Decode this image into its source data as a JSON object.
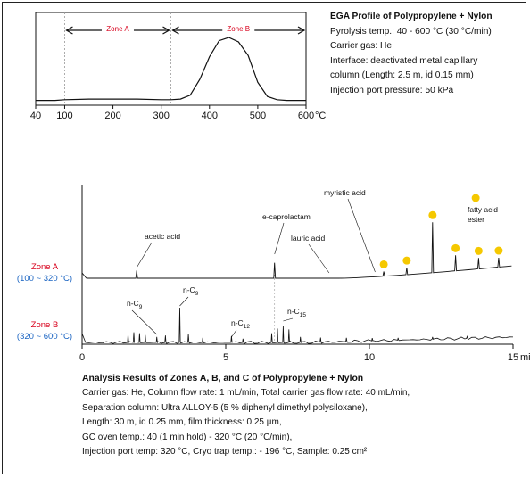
{
  "ega_info": {
    "title": "EGA Profile of Polypropylene + Nylon",
    "lines": [
      "Pyrolysis temp.: 40 - 600 °C (30 °C/min)",
      "Carrier gas: He",
      "Interface: deactivated metal capillary",
      "column (Length: 2.5 m, id 0.15 mm)",
      "Injection port pressure: 50 kPa"
    ]
  },
  "gc_info": {
    "title": "Analysis Results of Zones A, B, and C of Polypropylene + Nylon",
    "lines": [
      "Carrier gas: He, Column flow rate: 1 mL/min, Total carrier gas flow rate: 40 mL/min,",
      "Separation column: Ultra ALLOY-5 (5 % diphenyl dimethyl polysiloxane),",
      "Length: 30 m, id 0.25 mm, film thickness: 0.25 µm,",
      "GC oven temp.: 40 (1 min hold) - 320 °C (20 °C/min),",
      "Injection port temp: 320 °C, Cryo trap temp.: - 196 °C, Sample: 0.25 cm²"
    ]
  },
  "chrom_labels": {
    "zone_a": "Zone A",
    "zone_a_range": "(100 ~ 320 °C)",
    "zone_b": "Zone B",
    "zone_b_range": "(320 ~ 600 °C)"
  },
  "colors": {
    "zone_red": "#d8001c",
    "range_blue": "#1a64c2",
    "marker_yellow": "#f5c800",
    "line": "#111111"
  },
  "chart_data": [
    {
      "type": "line",
      "unit_label": "°C",
      "xlim": [
        40,
        600
      ],
      "x_ticks": [
        40,
        100,
        200,
        300,
        400,
        500,
        600
      ],
      "x_tick_labels": [
        "40",
        "100",
        "200",
        "300",
        "400",
        "500",
        "600"
      ],
      "zones": [
        {
          "name": "Zone A",
          "from": 100,
          "to": 320
        },
        {
          "name": "Zone B",
          "from": 320,
          "to": 600
        }
      ],
      "series": [
        {
          "x": [
            40,
            80,
            100,
            150,
            200,
            250,
            300,
            320,
            340,
            360,
            380,
            400,
            420,
            440,
            460,
            480,
            500,
            520,
            540,
            560,
            600
          ],
          "y": [
            0.02,
            0.02,
            0.03,
            0.04,
            0.04,
            0.04,
            0.03,
            0.03,
            0.04,
            0.1,
            0.35,
            0.7,
            0.95,
            1.0,
            0.93,
            0.72,
            0.3,
            0.08,
            0.03,
            0.02,
            0.02
          ]
        }
      ]
    },
    {
      "type": "line",
      "unit_label": "min",
      "xlim": [
        0,
        15
      ],
      "x_ticks": [
        0,
        5,
        10,
        15
      ],
      "x_tick_labels": [
        "0",
        "5",
        "10",
        "15"
      ],
      "annotations": [
        {
          "text": "acetic acid",
          "x": 1.9
        },
        {
          "text": "e-caprolactam",
          "x": 6.6
        },
        {
          "text": "myristic acid",
          "x": 12.2
        },
        {
          "text": "lauric acid",
          "x": 10.6
        },
        {
          "text": "fatty acid",
          "x": 13.8
        },
        {
          "text": "ester",
          "x": 13.8
        }
      ],
      "peak_labels": [
        {
          "text": "n-C",
          "sub": "9",
          "x": 2.6
        },
        {
          "text": "n-C",
          "sub": "9",
          "x": 3.4
        },
        {
          "text": "n-C",
          "sub": "12",
          "x": 5.2
        },
        {
          "text": "n-C",
          "sub": "15",
          "x": 7.0
        }
      ],
      "series": [
        {
          "name": "Zone A",
          "peaks": [
            {
              "x": 1.9,
              "h": 0.1
            },
            {
              "x": 6.7,
              "h": 0.2
            },
            {
              "x": 10.5,
              "h": 0.06
            },
            {
              "x": 11.3,
              "h": 0.09
            },
            {
              "x": 12.2,
              "h": 0.65
            },
            {
              "x": 13.0,
              "h": 0.2
            },
            {
              "x": 13.8,
              "h": 0.14
            },
            {
              "x": 14.5,
              "h": 0.12
            }
          ],
          "marked_peaks": [
            10.5,
            11.3,
            12.2,
            13.0,
            13.8,
            14.5,
            13.7
          ]
        },
        {
          "name": "Zone B",
          "peaks": [
            {
              "x": 1.6,
              "h": 0.18
            },
            {
              "x": 1.8,
              "h": 0.22
            },
            {
              "x": 2.0,
              "h": 0.2
            },
            {
              "x": 2.2,
              "h": 0.16
            },
            {
              "x": 2.6,
              "h": 0.12
            },
            {
              "x": 2.9,
              "h": 0.15
            },
            {
              "x": 3.4,
              "h": 0.75
            },
            {
              "x": 3.7,
              "h": 0.18
            },
            {
              "x": 4.2,
              "h": 0.1
            },
            {
              "x": 5.2,
              "h": 0.14
            },
            {
              "x": 5.6,
              "h": 0.08
            },
            {
              "x": 6.6,
              "h": 0.2
            },
            {
              "x": 6.8,
              "h": 0.3
            },
            {
              "x": 7.0,
              "h": 0.35
            },
            {
              "x": 7.2,
              "h": 0.28
            },
            {
              "x": 7.6,
              "h": 0.12
            },
            {
              "x": 8.3,
              "h": 0.1
            },
            {
              "x": 9.2,
              "h": 0.08
            },
            {
              "x": 10.1,
              "h": 0.06
            },
            {
              "x": 11.0,
              "h": 0.05
            },
            {
              "x": 12.2,
              "h": 0.05
            },
            {
              "x": 13.4,
              "h": 0.04
            }
          ]
        }
      ]
    }
  ]
}
